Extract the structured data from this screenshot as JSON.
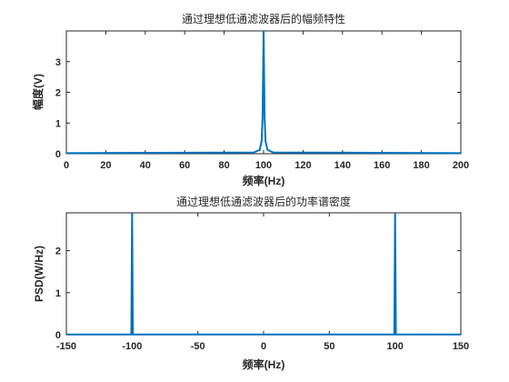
{
  "chart_data": [
    {
      "type": "line",
      "title": "通过理想低通滤波器后的幅频特性",
      "xlabel": "频率(Hz)",
      "ylabel": "幅度(V)",
      "xlim": [
        0,
        200
      ],
      "ylim": [
        0,
        4
      ],
      "xticks": [
        0,
        20,
        40,
        60,
        80,
        100,
        120,
        140,
        160,
        180,
        200
      ],
      "yticks": [
        0,
        1,
        2,
        3
      ],
      "grid": false,
      "color": "#0072BD",
      "series": [
        {
          "x": [
            0,
            95,
            98,
            99,
            99.5,
            100,
            100.5,
            101,
            102,
            105,
            200
          ],
          "y": [
            0.02,
            0.04,
            0.12,
            0.4,
            1.2,
            4.0,
            1.2,
            0.4,
            0.12,
            0.04,
            0.02
          ]
        }
      ]
    },
    {
      "type": "line",
      "title": "通过理想低通滤波器后的功率谱密度",
      "xlabel": "频率(Hz)",
      "ylabel": "PSD(W/Hz)",
      "xlim": [
        -150,
        150
      ],
      "ylim": [
        0,
        2.9
      ],
      "xticks": [
        -150,
        -100,
        -50,
        0,
        50,
        100,
        150
      ],
      "yticks": [
        0,
        1,
        2
      ],
      "grid": false,
      "color": "#0072BD",
      "series": [
        {
          "x": [
            -150,
            -100.6,
            -100,
            -99.4,
            99.4,
            100,
            100.6,
            150
          ],
          "y": [
            0.005,
            0.005,
            2.9,
            0.005,
            0.005,
            2.9,
            0.005,
            0.005
          ]
        }
      ]
    }
  ]
}
